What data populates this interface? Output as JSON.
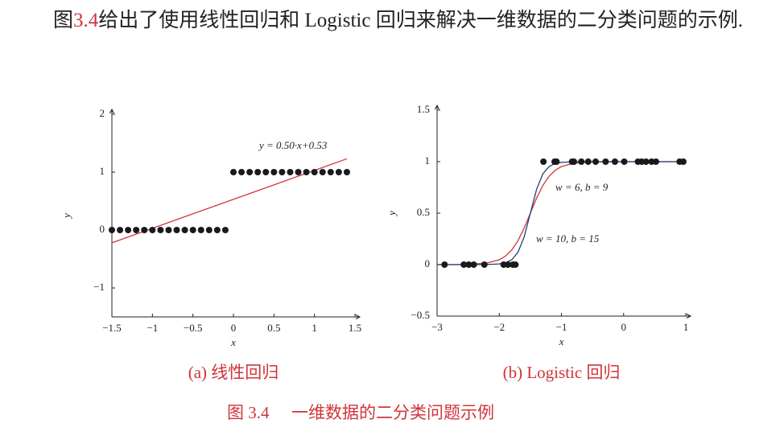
{
  "paragraph": {
    "prefix": "图",
    "ref": "3.4",
    "text": "给出了使用线性回归和 Logistic 回归来解决一维数据的二分类问题的示例."
  },
  "figure_caption": {
    "label": "图 3.4",
    "text": "一维数据的二分类问题示例"
  },
  "chart_data": [
    {
      "type": "scatter",
      "caption": "(a) 线性回归",
      "x_label": "x",
      "y_label": "y",
      "xlim": [
        -1.5,
        1.5
      ],
      "ylim": [
        -1.5,
        2
      ],
      "xticks": [
        {
          "value": -1.5,
          "label": "−1.5"
        },
        {
          "value": -1,
          "label": "−1"
        },
        {
          "value": -0.5,
          "label": "−0.5"
        },
        0,
        0.5,
        1,
        1.5
      ],
      "yticks": [
        {
          "value": -1,
          "label": "−1"
        },
        0,
        1,
        2
      ],
      "points": {
        "color": "#1a1a1a",
        "x": [
          -1.5,
          -1.4,
          -1.3,
          -1.2,
          -1.1,
          -1.0,
          -0.9,
          -0.8,
          -0.7,
          -0.6,
          -0.5,
          -0.4,
          -0.3,
          -0.2,
          -0.1,
          0,
          0.1,
          0.2,
          0.3,
          0.4,
          0.5,
          0.6,
          0.7,
          0.8,
          0.9,
          1.0,
          1.1,
          1.2,
          1.3,
          1.4
        ],
        "values": [
          0,
          0,
          0,
          0,
          0,
          0,
          0,
          0,
          0,
          0,
          0,
          0,
          0,
          0,
          0,
          1,
          1,
          1,
          1,
          1,
          1,
          1,
          1,
          1,
          1,
          1,
          1,
          1,
          1,
          1
        ]
      },
      "lines": [
        {
          "label": "y = 0.50·x+0.53",
          "color": "#d0343a",
          "x": [
            -1.5,
            1.4
          ],
          "values": [
            -0.22,
            1.23
          ]
        }
      ]
    },
    {
      "type": "scatter",
      "caption": "(b) Logistic 回归",
      "x_label": "x",
      "y_label": "y",
      "xlim": [
        -3,
        1
      ],
      "ylim": [
        -0.5,
        1.5
      ],
      "xticks": [
        {
          "value": -3,
          "label": "−3"
        },
        {
          "value": -2,
          "label": "−2"
        },
        {
          "value": -1,
          "label": "−1"
        },
        0,
        1
      ],
      "yticks": [
        {
          "value": -0.5,
          "label": "−0.5"
        },
        0,
        0.5,
        1,
        1.5
      ],
      "points": {
        "color": "#1a1a1a",
        "x": [
          -2.88,
          -2.57,
          -2.49,
          -2.41,
          -2.24,
          -1.93,
          -1.86,
          -1.78,
          -1.74,
          -1.29,
          -1.11,
          -1.08,
          -0.83,
          -0.8,
          -0.68,
          -0.57,
          -0.45,
          -0.29,
          -0.14,
          0.01,
          0.23,
          0.29,
          0.36,
          0.45,
          0.52,
          0.9,
          0.96
        ],
        "values": [
          0,
          0,
          0,
          0,
          0,
          0,
          0,
          0,
          0,
          1,
          1,
          1,
          1,
          1,
          1,
          1,
          1,
          1,
          1,
          1,
          1,
          1,
          1,
          1,
          1,
          1,
          1
        ]
      },
      "lines": [
        {
          "label": "w = 6, b = 9",
          "color": "#d0343a",
          "x": [
            -3,
            -2.5,
            -2.2,
            -2,
            -1.9,
            -1.8,
            -1.7,
            -1.6,
            -1.5,
            -1.4,
            -1.3,
            -1.2,
            -1.1,
            -1,
            -0.8,
            -0.5,
            0,
            1
          ],
          "values": [
            0.0,
            0.002,
            0.015,
            0.047,
            0.083,
            0.142,
            0.232,
            0.354,
            0.5,
            0.646,
            0.768,
            0.858,
            0.917,
            0.953,
            0.985,
            0.998,
            1.0,
            1.0
          ]
        },
        {
          "label": "w = 10, b = 15",
          "color": "#1f3f7a",
          "x": [
            -3,
            -2.5,
            -2.2,
            -2,
            -1.9,
            -1.8,
            -1.7,
            -1.6,
            -1.5,
            -1.4,
            -1.3,
            -1.2,
            -1.1,
            -1,
            -0.8,
            -0.5,
            0,
            1
          ],
          "values": [
            0.0,
            0.0,
            0.001,
            0.007,
            0.018,
            0.047,
            0.119,
            0.269,
            0.5,
            0.731,
            0.881,
            0.953,
            0.982,
            0.993,
            0.999,
            1.0,
            1.0,
            1.0
          ]
        }
      ]
    }
  ]
}
